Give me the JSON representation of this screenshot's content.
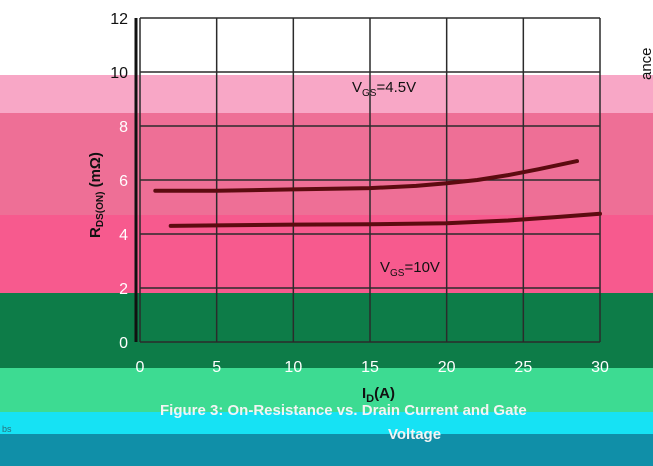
{
  "chart_data": {
    "type": "line",
    "title": "",
    "caption_line1": "Figure 3: On-Resistance vs. Drain Current and Gate",
    "caption_line2": "Voltage",
    "xlabel_main": "I",
    "xlabel_sub": "D",
    "xlabel_tail": "(A)",
    "ylabel_main": "R",
    "ylabel_sub": "DS(ON)",
    "ylabel_tail": " (mΩ)",
    "side_text": "ance",
    "corner_text": "bs",
    "x_ticks": [
      "0",
      "5",
      "10",
      "15",
      "20",
      "25",
      "30"
    ],
    "y_ticks": [
      "0",
      "2",
      "4",
      "6",
      "8",
      "10",
      "12"
    ],
    "xlim": [
      0,
      30
    ],
    "ylim": [
      0,
      12
    ],
    "grid": true,
    "series": [
      {
        "name": "VGS=4.5V",
        "annotation_main": "V",
        "annotation_sub": "GS",
        "annotation_value": "=4.5V",
        "x": [
          1,
          5,
          10,
          15,
          18,
          20,
          22,
          24,
          26,
          28.5
        ],
        "y": [
          5.6,
          5.6,
          5.65,
          5.7,
          5.78,
          5.88,
          6.0,
          6.18,
          6.4,
          6.7
        ]
      },
      {
        "name": "VGS=10V",
        "annotation_main": "V",
        "annotation_sub": "GS",
        "annotation_value": "=10V",
        "x": [
          2,
          5,
          10,
          15,
          20,
          24,
          27,
          30
        ],
        "y": [
          4.3,
          4.32,
          4.35,
          4.36,
          4.4,
          4.5,
          4.62,
          4.75
        ]
      }
    ],
    "colors": {
      "line": "#5c0b10",
      "grid": "#2b2b2b",
      "band_top": "#ffffff",
      "band_light_pink": "#f8a7c6",
      "band_mid_pink": "#ee6f96",
      "band_hot_pink": "#f75a8e",
      "band_green": "#0d7c48",
      "band_mint": "#3ddb92",
      "band_cyan": "#16e2f4",
      "band_teal": "#108fa8"
    }
  }
}
